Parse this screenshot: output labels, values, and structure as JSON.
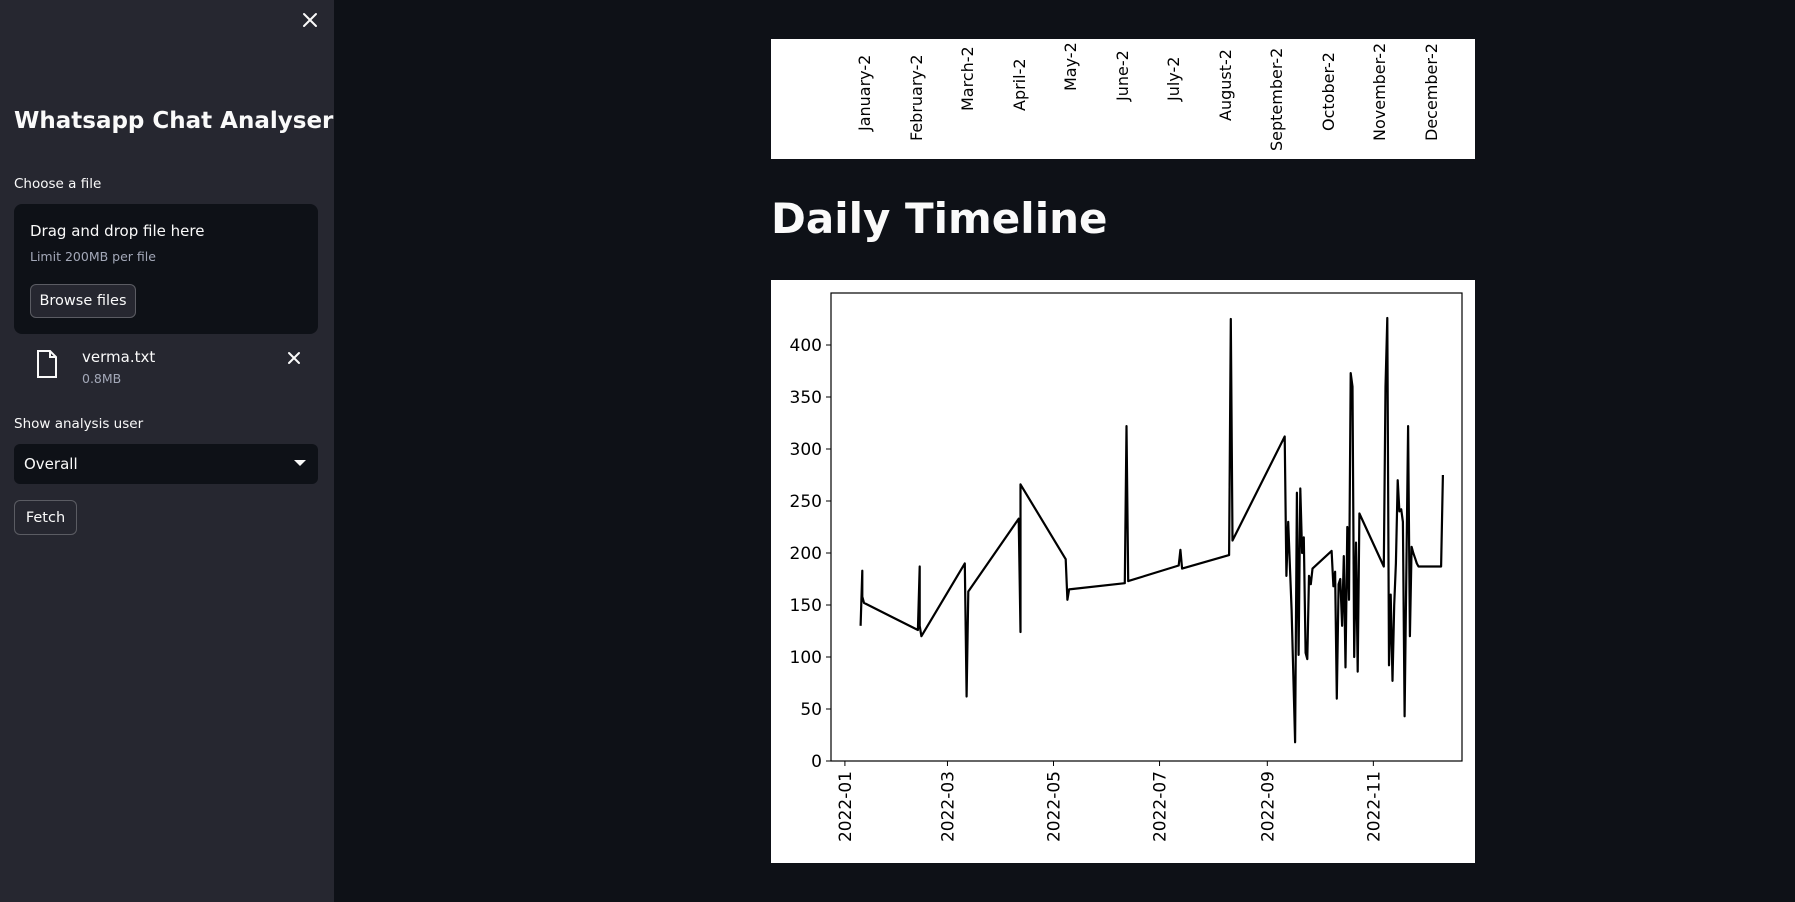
{
  "sidebar": {
    "title": "Whatsapp Chat Analyser",
    "file_label": "Choose a file",
    "dropzone": {
      "main": "Drag and drop file here",
      "limit": "Limit 200MB per file",
      "browse_label": "Browse files"
    },
    "uploaded_file": {
      "name": "verma.txt",
      "size": "0.8MB"
    },
    "user_label": "Show analysis user",
    "user_selected": "Overall",
    "fetch_label": "Fetch"
  },
  "main": {
    "monthly_ticks": [
      "January-2",
      "February-2",
      "March-2",
      "April-2",
      "May-2",
      "June-2",
      "July-2",
      "August-2",
      "September-2",
      "October-2",
      "November-2",
      "December-2"
    ],
    "heading": "Daily Timeline"
  },
  "chart_data": {
    "type": "line",
    "title": "",
    "xlabel": "",
    "ylabel": "",
    "ylim": [
      0,
      450
    ],
    "xlim": [
      "2021-12-24",
      "2022-12-22"
    ],
    "yticks": [
      0,
      50,
      100,
      150,
      200,
      250,
      300,
      350,
      400
    ],
    "xticks": [
      "2022-01",
      "2022-03",
      "2022-05",
      "2022-07",
      "2022-09",
      "2022-11"
    ],
    "line_color": "#000000",
    "series": [
      {
        "x": [
          "2022-01-10",
          "2022-01-11",
          "2022-01-11",
          "2022-01-12",
          "2022-02-12",
          "2022-02-13",
          "2022-02-13",
          "2022-02-14",
          "2022-03-11",
          "2022-03-12",
          "2022-03-13",
          "2022-04-11",
          "2022-04-12",
          "2022-04-12",
          "2022-05-08",
          "2022-05-09",
          "2022-05-10",
          "2022-06-11",
          "2022-06-12",
          "2022-06-13",
          "2022-07-12",
          "2022-07-13",
          "2022-07-14",
          "2022-08-10",
          "2022-08-11",
          "2022-08-12",
          "2022-09-11",
          "2022-09-12",
          "2022-09-13",
          "2022-09-15",
          "2022-09-17",
          "2022-09-18",
          "2022-09-19",
          "2022-09-20",
          "2022-09-21",
          "2022-09-22",
          "2022-09-23",
          "2022-09-24",
          "2022-09-25",
          "2022-09-26",
          "2022-09-27",
          "2022-10-08",
          "2022-10-09",
          "2022-10-10",
          "2022-10-11",
          "2022-10-12",
          "2022-10-13",
          "2022-10-14",
          "2022-10-15",
          "2022-10-16",
          "2022-10-17",
          "2022-10-18",
          "2022-10-19",
          "2022-10-20",
          "2022-10-21",
          "2022-10-22",
          "2022-10-23",
          "2022-10-24",
          "2022-11-07",
          "2022-11-08",
          "2022-11-09",
          "2022-11-10",
          "2022-11-11",
          "2022-11-12",
          "2022-11-13",
          "2022-11-14",
          "2022-11-15",
          "2022-11-16",
          "2022-11-17",
          "2022-11-18",
          "2022-11-19",
          "2022-11-21",
          "2022-11-22",
          "2022-11-23",
          "2022-11-24",
          "2022-11-25",
          "2022-11-26",
          "2022-11-27",
          "2022-12-10",
          "2022-12-11"
        ],
        "values": [
          130,
          183,
          158,
          152,
          126,
          187,
          130,
          120,
          190,
          62,
          163,
          233,
          124,
          266,
          194,
          155,
          165,
          171,
          322,
          173,
          188,
          203,
          185,
          198,
          425,
          212,
          312,
          178,
          230,
          145,
          18,
          258,
          102,
          262,
          200,
          215,
          104,
          98,
          178,
          170,
          185,
          202,
          168,
          182,
          60,
          170,
          175,
          130,
          197,
          90,
          225,
          155,
          373,
          360,
          100,
          210,
          86,
          238,
          187,
          360,
          426,
          92,
          160,
          77,
          150,
          190,
          270,
          240,
          242,
          230,
          43,
          322,
          120,
          206,
          200,
          195,
          190,
          187,
          187,
          275
        ]
      }
    ]
  }
}
